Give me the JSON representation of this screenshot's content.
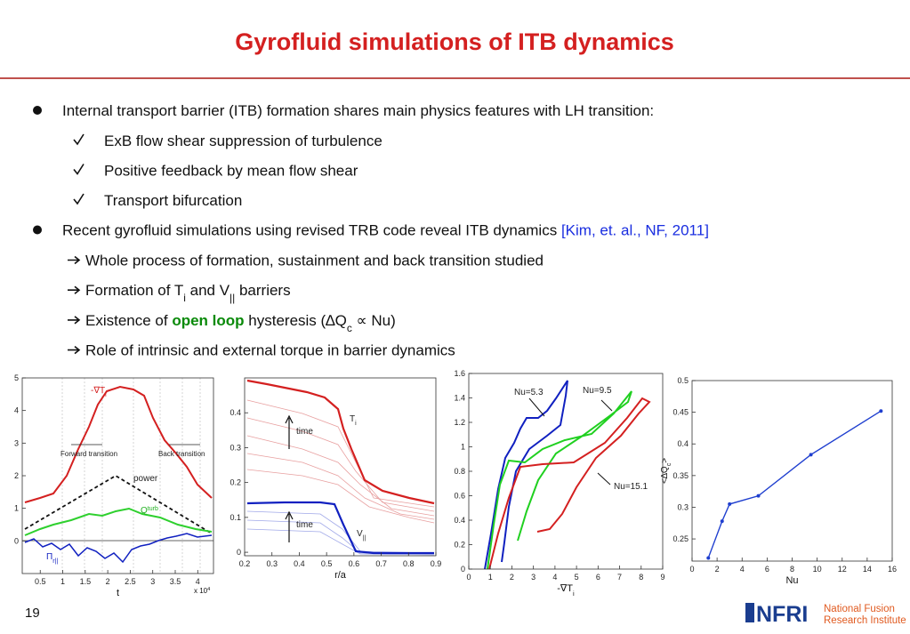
{
  "header": {
    "title": "Gyrofluid simulations of ITB dynamics"
  },
  "bullets": [
    {
      "parts": [
        {
          "text": "Internal transport barrier (ITB) formation shares main physics features with LH transition:"
        }
      ],
      "checks": [
        "ExB flow shear suppression of turbulence",
        "Positive feedback by mean flow shear",
        "Transport bifurcation"
      ]
    },
    {
      "parts": [
        {
          "text": "Recent gyrofluid simulations using revised TRB code reveal ITB dynamics "
        },
        {
          "text": "[Kim, et. al., NF, 2011]",
          "style": "blue"
        }
      ],
      "arrows": [
        {
          "parts": [
            {
              "text": "Whole process of formation, sustainment and back transition studied"
            }
          ]
        },
        {
          "parts": [
            {
              "text": "Formation of T"
            },
            {
              "text": "i",
              "style": "sub"
            },
            {
              "text": " and V"
            },
            {
              "text": "||",
              "style": "sub"
            },
            {
              "text": " barriers"
            }
          ]
        },
        {
          "parts": [
            {
              "text": "Existence of "
            },
            {
              "text": "open loop",
              "style": "bold-green"
            },
            {
              "text": " hysteresis (∆Q"
            },
            {
              "text": "c",
              "style": "sub"
            },
            {
              "text": " ∝  Nu)"
            }
          ]
        },
        {
          "parts": [
            {
              "text": "Role of intrinsic and external torque in barrier dynamics"
            }
          ]
        }
      ]
    }
  ],
  "charts": [
    {
      "xlim": [
        0.1,
        4.35
      ],
      "ylim": [
        -1,
        5
      ],
      "xticks": [
        0.5,
        1,
        1.5,
        2,
        2.5,
        3,
        3.5,
        4
      ],
      "yticks": [
        0,
        1,
        2,
        3,
        4,
        5
      ],
      "xlabel": {
        "parts": [
          {
            "text": "t"
          }
        ]
      },
      "xnote": {
        "parts": [
          {
            "text": "x 10"
          },
          {
            "text": "4",
            "style": "sup"
          }
        ]
      },
      "annotations": [
        {
          "parts": [
            {
              "text": "-∇T"
            },
            {
              "text": "i",
              "style": "sub"
            }
          ],
          "color": "#d42020"
        },
        {
          "parts": [
            {
              "text": "Forward transition"
            }
          ],
          "color": "#222"
        },
        {
          "parts": [
            {
              "text": "Back transition"
            }
          ],
          "color": "#222"
        },
        {
          "parts": [
            {
              "text": "power"
            }
          ],
          "color": "#222"
        },
        {
          "parts": [
            {
              "text": "Q"
            },
            {
              "text": "turb",
              "style": "sup"
            }
          ],
          "color": "#20b020"
        },
        {
          "parts": [
            {
              "text": "Π"
            },
            {
              "text": "r||",
              "style": "sub"
            }
          ],
          "color": "#1020c0"
        }
      ]
    },
    {
      "xlim": [
        0.2,
        0.9
      ],
      "ylim": [
        -0.01,
        0.5
      ],
      "xticks": [
        0.2,
        0.3,
        0.4,
        0.5,
        0.6,
        0.7,
        0.8,
        0.9
      ],
      "yticks": [
        0,
        0.1,
        0.2,
        0.3,
        0.4
      ],
      "xlabel": {
        "parts": [
          {
            "text": "r/a"
          }
        ]
      },
      "annotations": [
        {
          "parts": [
            {
              "text": "time"
            }
          ],
          "color": "#222"
        },
        {
          "parts": [
            {
              "text": "T"
            },
            {
              "text": "i",
              "style": "sub"
            }
          ],
          "color": "#222"
        },
        {
          "parts": [
            {
              "text": "time"
            }
          ],
          "color": "#222"
        },
        {
          "parts": [
            {
              "text": "V"
            },
            {
              "text": "||",
              "style": "sub"
            }
          ],
          "color": "#222"
        }
      ]
    },
    {
      "xlim": [
        0,
        9
      ],
      "ylim": [
        0,
        1.6
      ],
      "xticks": [
        0,
        1,
        2,
        3,
        4,
        5,
        6,
        7,
        8,
        9
      ],
      "yticks": [
        0,
        0.2,
        0.4,
        0.6,
        0.8,
        1,
        1.2,
        1.4,
        1.6
      ],
      "xlabel": {
        "parts": [
          {
            "text": "-∇T"
          },
          {
            "text": "i",
            "style": "sub"
          }
        ]
      },
      "annotations": [
        {
          "parts": [
            {
              "text": "Nu=5.3"
            }
          ],
          "color": "#222"
        },
        {
          "parts": [
            {
              "text": "Nu=9.5"
            }
          ],
          "color": "#222"
        },
        {
          "parts": [
            {
              "text": "Nu=15.1"
            }
          ],
          "color": "#222"
        }
      ]
    },
    {
      "type": "line",
      "xlim": [
        0,
        16
      ],
      "ylim": [
        0.215,
        0.5
      ],
      "xticks": [
        0,
        2,
        4,
        6,
        8,
        10,
        12,
        14,
        16
      ],
      "yticks": [
        0.25,
        0.3,
        0.35,
        0.4,
        0.45,
        0.5
      ],
      "xlabel": {
        "parts": [
          {
            "text": "Nu"
          }
        ]
      },
      "ylabel": {
        "parts": [
          {
            "text": "<∆Q"
          },
          {
            "text": "c",
            "style": "sub"
          },
          {
            "text": ">"
          }
        ]
      },
      "color": "#1f3fcf",
      "x": [
        1.3,
        2.4,
        3,
        5.3,
        9.5,
        15.1
      ],
      "values": [
        0.22,
        0.278,
        0.305,
        0.318,
        0.383,
        0.452
      ],
      "annotations": []
    }
  ],
  "footer": {
    "page_number": "19",
    "logo": {
      "mark": "NFRI",
      "lines": [
        "National Fusion",
        "Research Institute"
      ]
    }
  }
}
